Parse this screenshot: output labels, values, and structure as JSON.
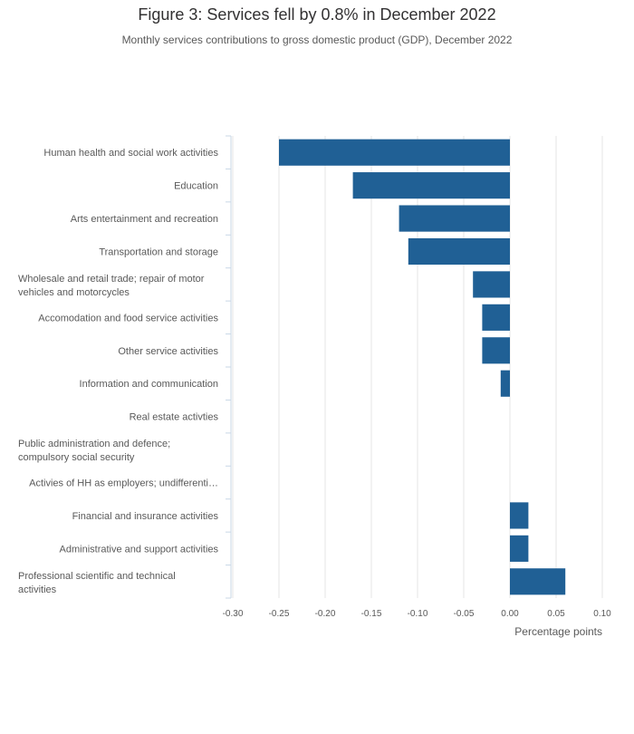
{
  "chart_data": {
    "type": "bar",
    "orientation": "horizontal",
    "title": "Figure 3: Services fell by 0.8% in December 2022",
    "subtitle": "Monthly services contributions to gross domestic product (GDP), December 2022",
    "xlabel": "Percentage points",
    "ylabel": "",
    "xlim": [
      -0.3,
      0.1
    ],
    "xticks": [
      "-0.30",
      "-0.25",
      "-0.20",
      "-0.15",
      "-0.10",
      "-0.05",
      "0.00",
      "0.05",
      "0.10"
    ],
    "grid": true,
    "bar_color": "#206095",
    "categories": [
      [
        "Human health and social work activities"
      ],
      [
        "Education"
      ],
      [
        "Arts entertainment and recreation"
      ],
      [
        "Transportation and storage"
      ],
      [
        "Wholesale and retail trade; repair of motor",
        "vehicles and motorcycles"
      ],
      [
        "Accomodation and food service activities"
      ],
      [
        "Other service activities"
      ],
      [
        "Information and communication"
      ],
      [
        "Real estate activties"
      ],
      [
        "Public administration and defence;",
        "compulsory social security"
      ],
      [
        "Activies of HH as employers; undifferenti…"
      ],
      [
        "Financial and insurance activities"
      ],
      [
        "Administrative and support activities"
      ],
      [
        "Professional scientific and technical",
        "activities"
      ]
    ],
    "values": [
      -0.25,
      -0.17,
      -0.12,
      -0.11,
      -0.04,
      -0.03,
      -0.03,
      -0.01,
      0.0,
      0.0,
      0.0,
      0.02,
      0.02,
      0.06
    ]
  }
}
